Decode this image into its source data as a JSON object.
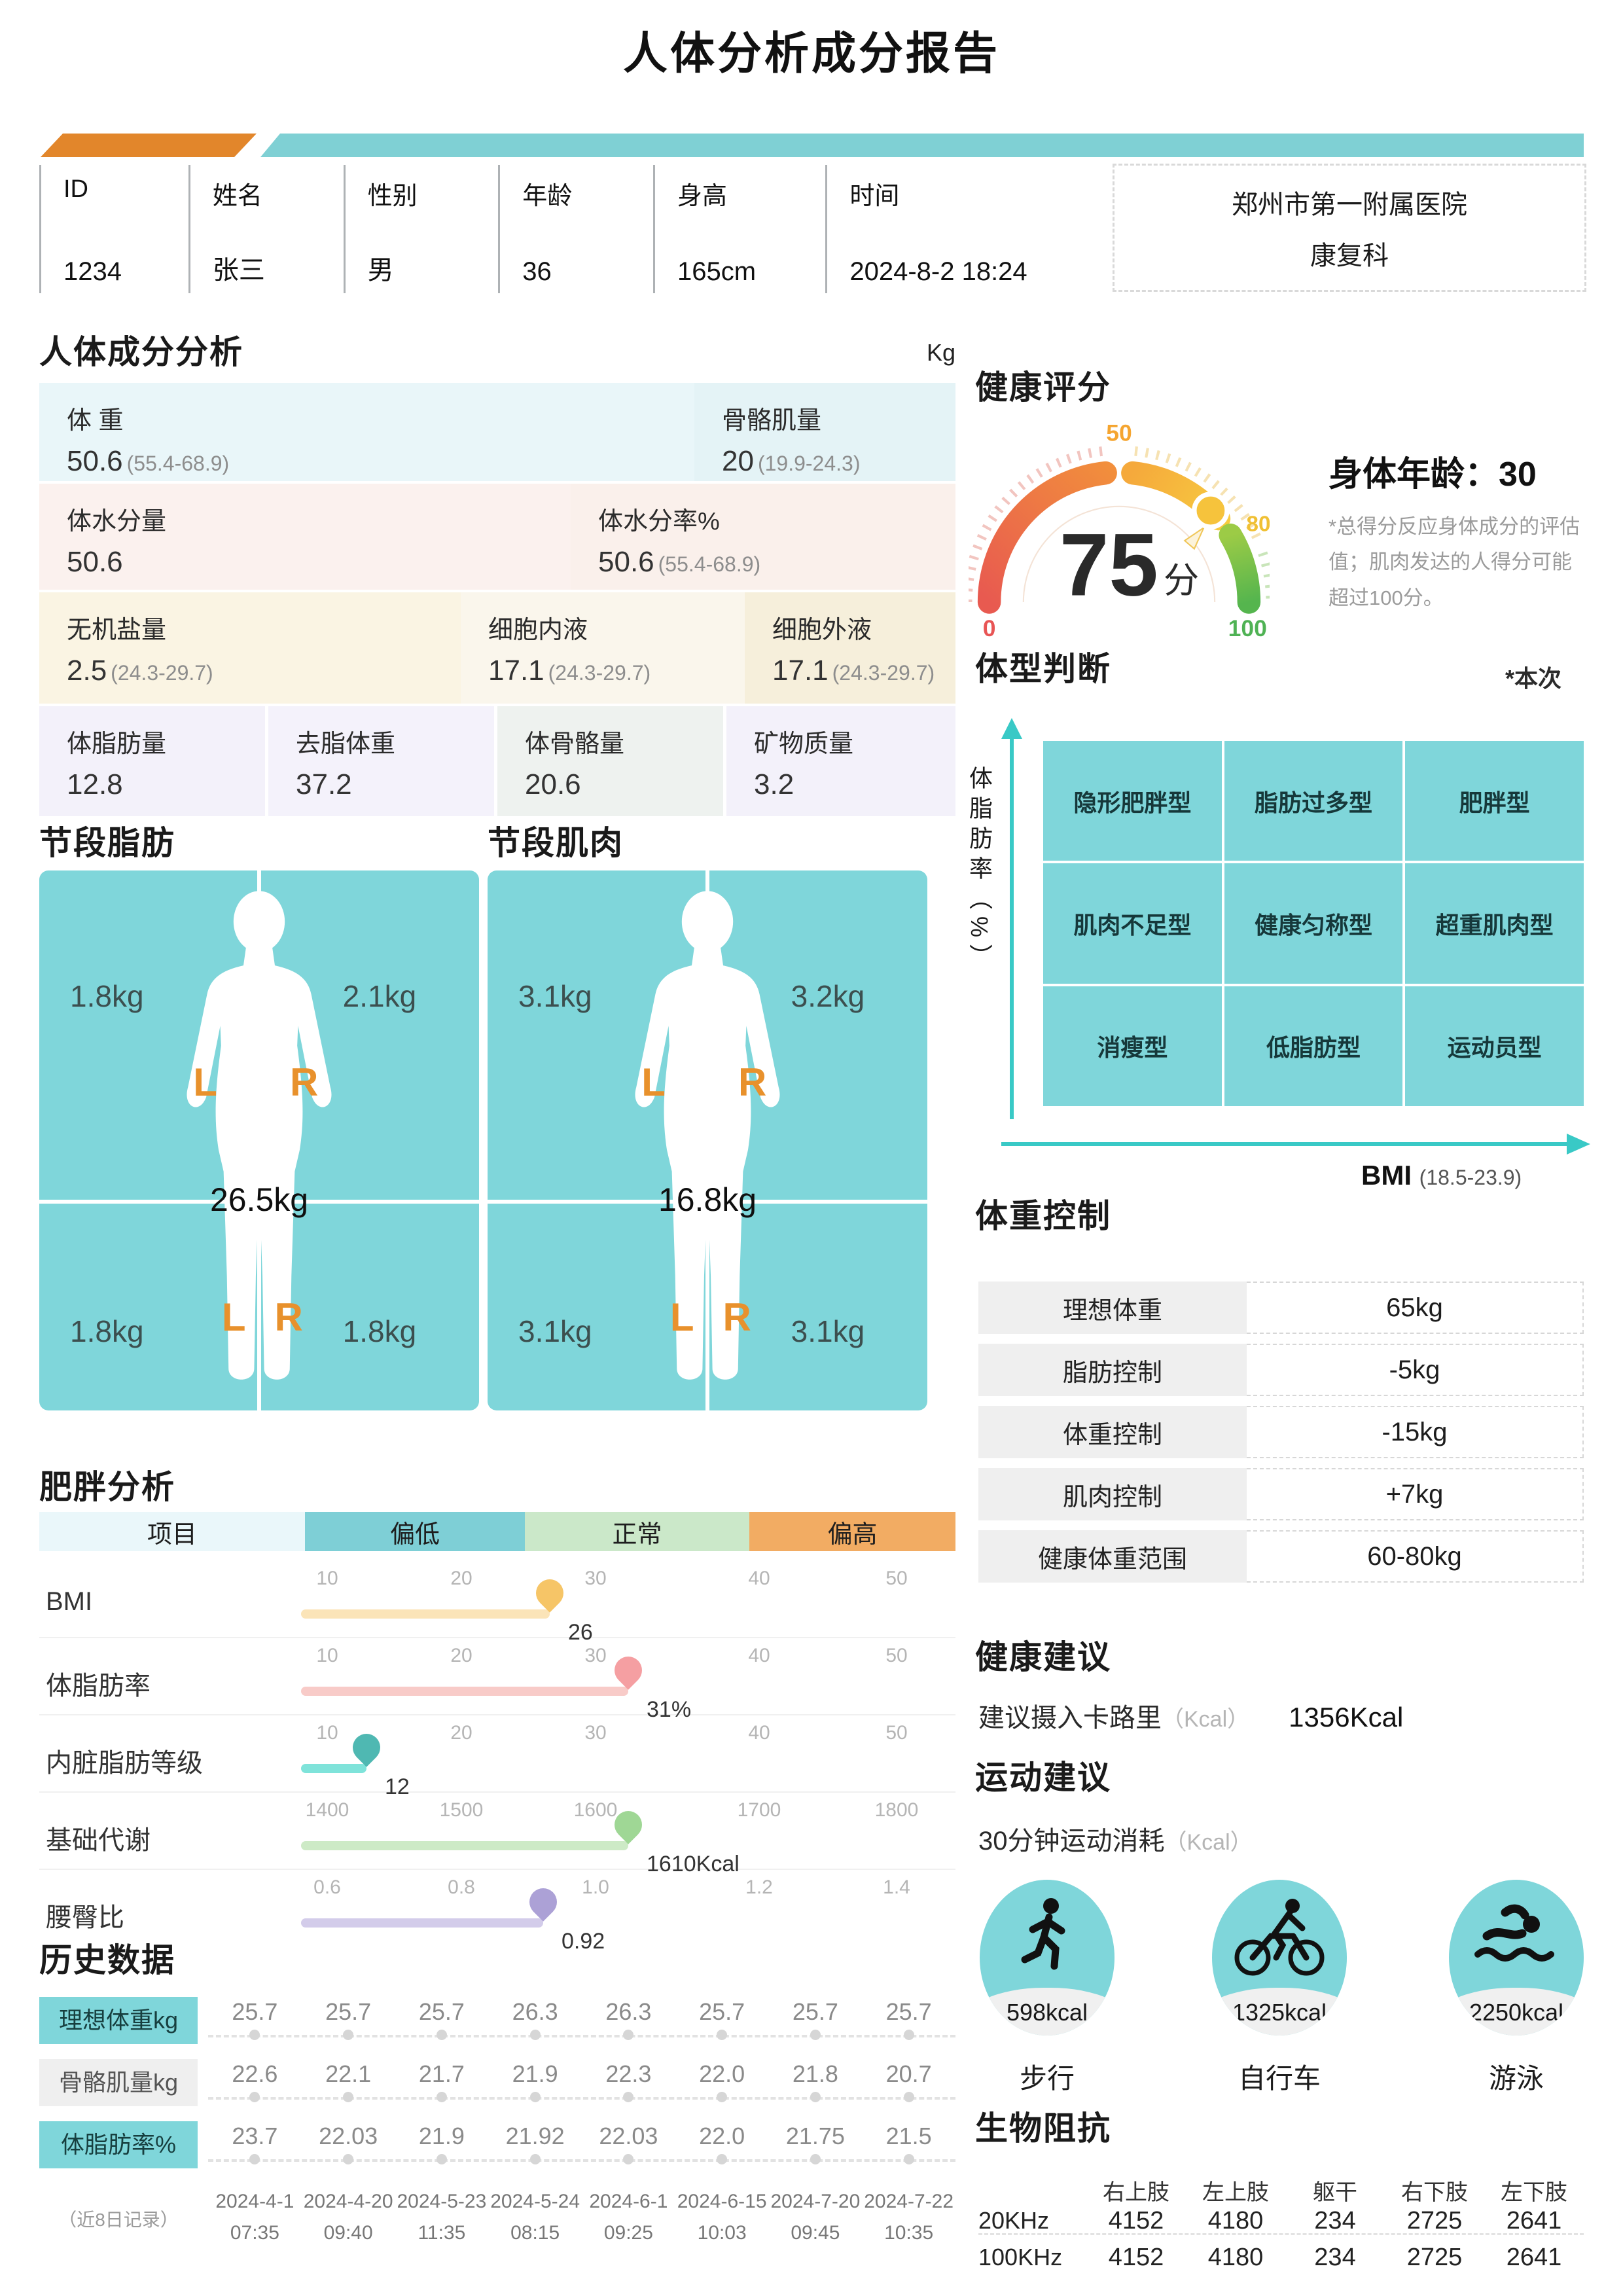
{
  "colors": {
    "teal": "#7FD6DA",
    "orange": "#E2862B",
    "bar_teal": "#7FD0D4"
  },
  "report_title": "人体分析成分报告",
  "patient": {
    "fields": [
      {
        "label": "ID",
        "value": "1234"
      },
      {
        "label": "姓名",
        "value": "张三"
      },
      {
        "label": "性别",
        "value": "男"
      },
      {
        "label": "年龄",
        "value": "36"
      },
      {
        "label": "身高",
        "value": "165cm"
      },
      {
        "label": "时间",
        "value": "2024-8-2  18:24"
      }
    ],
    "hospital": "郑州市第一附属医院",
    "department": "康复科"
  },
  "body_composition": {
    "title": "人体成分分析",
    "unit": "Kg",
    "r1c1_label": "体 重",
    "r1c1_value": "50.6",
    "r1c1_range": "(55.4-68.9)",
    "r1c2_label": "骨骼肌量",
    "r1c2_value": "20",
    "r1c2_range": "(19.9-24.3)",
    "r2c1_label": "体水分量",
    "r2c1_value": "50.6",
    "r2c2_label": "体水分率%",
    "r2c2_value": "50.6",
    "r2c2_range": "(55.4-68.9)",
    "r3c1_label": "无机盐量",
    "r3c1_value": "2.5",
    "r3c1_range": "(24.3-29.7)",
    "r3c2_label": "细胞内液",
    "r3c2_value": "17.1",
    "r3c2_range": "(24.3-29.7)",
    "r3c3_label": "细胞外液",
    "r3c3_value": "17.1",
    "r3c3_range": "(24.3-29.7)",
    "r4c1_label": "体脂肪量",
    "r4c1_value": "12.8",
    "r4c2_label": "去脂体重",
    "r4c2_value": "37.2",
    "r4c3_label": "体骨骼量",
    "r4c3_value": "20.6",
    "r4c4_label": "矿物质量",
    "r4c4_value": "3.2"
  },
  "segments": {
    "l": "L",
    "r": "R"
  },
  "segmental_fat": {
    "title": "节段脂肪",
    "top_left": "1.8kg",
    "top_right": "2.1kg",
    "center": "26.5kg",
    "bottom_left": "1.8kg",
    "bottom_right": "1.8kg"
  },
  "segmental_muscle": {
    "title": "节段肌肉",
    "top_left": "3.1kg",
    "top_right": "3.2kg",
    "center": "16.8kg",
    "bottom_left": "3.1kg",
    "bottom_right": "3.1kg"
  },
  "obesity_analysis": {
    "title": "肥胖分析",
    "header": {
      "item": "项目",
      "low": "偏低",
      "normal": "正常",
      "high": "偏高"
    },
    "rows": [
      {
        "label": "BMI",
        "ticks": [
          "10",
          "20",
          "30",
          "40",
          "50"
        ],
        "value": "26"
      },
      {
        "label": "体脂肪率",
        "ticks": [
          "10",
          "20",
          "30",
          "40",
          "50"
        ],
        "value": "31%"
      },
      {
        "label": "内脏脂肪等级",
        "ticks": [
          "10",
          "20",
          "30",
          "40",
          "50"
        ],
        "value": "12"
      },
      {
        "label": "基础代谢",
        "ticks": [
          "1400",
          "1500",
          "1600",
          "1700",
          "1800"
        ],
        "value": "1610Kcal"
      },
      {
        "label": "腰臀比",
        "ticks": [
          "0.6",
          "0.8",
          "1.0",
          "1.2",
          "1.4"
        ],
        "value": "0.92"
      }
    ]
  },
  "history": {
    "title": "历史数据",
    "note": "（近8日记录）",
    "rows": [
      {
        "label": "理想体重kg",
        "values": [
          "25.7",
          "25.7",
          "25.7",
          "26.3",
          "26.3",
          "25.7",
          "25.7",
          "25.7"
        ]
      },
      {
        "label": "骨骼肌量kg",
        "values": [
          "22.6",
          "22.1",
          "21.7",
          "21.9",
          "22.3",
          "22.0",
          "21.8",
          "20.7"
        ]
      },
      {
        "label": "体脂肪率%",
        "values": [
          "23.7",
          "22.03",
          "21.9",
          "21.92",
          "22.03",
          "22.0",
          "21.75",
          "21.5"
        ]
      }
    ],
    "dates": [
      {
        "date": "2024-4-1",
        "time": "07:35"
      },
      {
        "date": "2024-4-20",
        "time": "09:40"
      },
      {
        "date": "2024-5-23",
        "time": "11:35"
      },
      {
        "date": "2024-5-24",
        "time": "08:15"
      },
      {
        "date": "2024-6-1",
        "time": "09:25"
      },
      {
        "date": "2024-6-15",
        "time": "10:03"
      },
      {
        "date": "2024-7-20",
        "time": "09:45"
      },
      {
        "date": "2024-7-22",
        "time": "10:35"
      }
    ]
  },
  "health_score": {
    "title": "健康评分",
    "score": "75",
    "score_unit": "分",
    "g0": "0",
    "g50": "50",
    "g80": "80",
    "g100": "100",
    "body_age_label": "身体年龄：",
    "body_age": "30",
    "note": "*总得分反应身体成分的评估值；肌肉发达的人得分可能超过100分。"
  },
  "body_type": {
    "title": "体型判断",
    "note": "*本次",
    "y_axis": "体脂肪率（%）",
    "x_axis": "BMI",
    "x_axis_range": "(18.5-23.9)",
    "cells": [
      "隐形肥胖型",
      "脂肪过多型",
      "肥胖型",
      "肌肉不足型",
      "健康匀称型",
      "超重肌肉型",
      "消瘦型",
      "低脂肪型",
      "运动员型"
    ]
  },
  "weight_control": {
    "title": "体重控制",
    "rows": [
      {
        "label": "理想体重",
        "value": "65kg"
      },
      {
        "label": "脂肪控制",
        "value": "-5kg"
      },
      {
        "label": "体重控制",
        "value": "-15kg"
      },
      {
        "label": "肌肉控制",
        "value": "+7kg"
      },
      {
        "label": "健康体重范围",
        "value": "60-80kg"
      }
    ]
  },
  "health_advice": {
    "title": "健康建议",
    "label": "建议摄入卡路里",
    "unit": "（Kcal）",
    "value": "1356Kcal"
  },
  "exercise_advice": {
    "title": "运动建议",
    "subtitle": "30分钟运动消耗",
    "unit": "（Kcal）",
    "items": [
      {
        "kcal": "598kcal",
        "name": "步行",
        "icon": "walking-icon"
      },
      {
        "kcal": "1325kcal",
        "name": "自行车",
        "icon": "cycling-icon"
      },
      {
        "kcal": "2250kcal",
        "name": "游泳",
        "icon": "swimming-icon"
      }
    ]
  },
  "bioimpedance": {
    "title": "生物阻抗",
    "headers": [
      "右上肢",
      "左上肢",
      "躯干",
      "右下肢",
      "左下肢"
    ],
    "rows": [
      {
        "freq": "20KHz",
        "values": [
          "4152",
          "4180",
          "234",
          "2725",
          "2641"
        ]
      },
      {
        "freq": "100KHz",
        "values": [
          "4152",
          "4180",
          "234",
          "2725",
          "2641"
        ]
      }
    ]
  }
}
